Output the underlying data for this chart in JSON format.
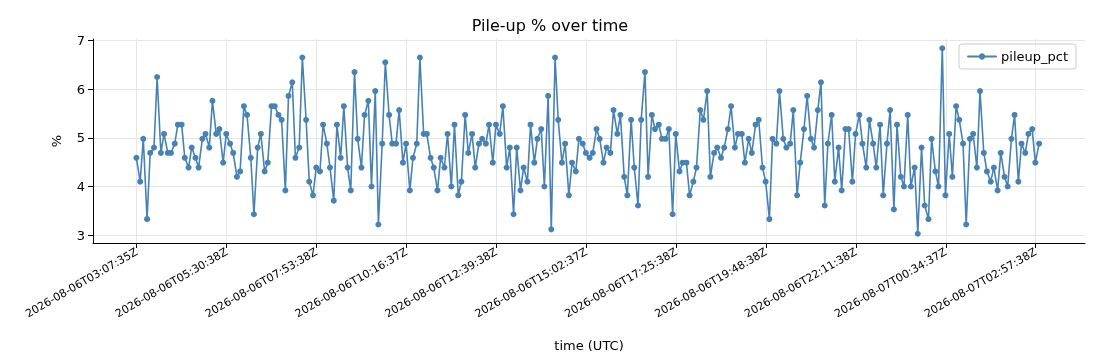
{
  "chart_data": {
    "type": "line",
    "title": "Pile-up % over time",
    "xlabel": "time (UTC)",
    "ylabel": "%",
    "xlim": [
      "2026-08-06T01:58",
      "2026-08-07T04:16"
    ],
    "xticks": [
      "2026-08-06T03:07:35Z",
      "2026-08-06T05:30:38Z",
      "2026-08-06T07:53:38Z",
      "2026-08-06T10:16:37Z",
      "2026-08-06T12:39:38Z",
      "2026-08-06T15:02:37Z",
      "2026-08-06T17:25:38Z",
      "2026-08-06T19:48:38Z",
      "2026-08-06T22:11:38Z",
      "2026-08-07T00:34:37Z",
      "2026-08-07T02:57:38Z"
    ],
    "ylim": [
      2.84,
      7.03
    ],
    "yticks": [
      3,
      4,
      5,
      6,
      7
    ],
    "grid": true,
    "legend": "top right",
    "marker": "circle",
    "line_style": "solid",
    "x": [
      "2026-08-06T03:07",
      "2026-08-06T03:13",
      "2026-08-06T03:18",
      "2026-08-06T03:24",
      "2026-08-06T03:29",
      "2026-08-06T03:35",
      "2026-08-06T03:40",
      "2026-08-06T03:46",
      "2026-08-06T03:51",
      "2026-08-06T03:57",
      "2026-08-06T04:02",
      "2026-08-06T04:08",
      "2026-08-06T04:13",
      "2026-08-06T04:19",
      "2026-08-06T04:24",
      "2026-08-06T04:30",
      "2026-08-06T04:35",
      "2026-08-06T04:41",
      "2026-08-06T04:46",
      "2026-08-06T04:52",
      "2026-08-06T04:57",
      "2026-08-06T05:03",
      "2026-08-06T05:08",
      "2026-08-06T05:14",
      "2026-08-06T05:19",
      "2026-08-06T05:25",
      "2026-08-06T05:30",
      "2026-08-06T05:36",
      "2026-08-06T05:41",
      "2026-08-06T05:47",
      "2026-08-06T05:52",
      "2026-08-06T05:58",
      "2026-08-06T06:03",
      "2026-08-06T06:09",
      "2026-08-06T06:14",
      "2026-08-06T06:20",
      "2026-08-06T06:25",
      "2026-08-06T06:31",
      "2026-08-06T06:36",
      "2026-08-06T06:42",
      "2026-08-06T06:47",
      "2026-08-06T06:53",
      "2026-08-06T06:58",
      "2026-08-06T07:04",
      "2026-08-06T07:09",
      "2026-08-06T07:15",
      "2026-08-06T07:20",
      "2026-08-06T07:26",
      "2026-08-06T07:31",
      "2026-08-06T07:37",
      "2026-08-06T07:42",
      "2026-08-06T07:48",
      "2026-08-06T07:53",
      "2026-08-06T07:59",
      "2026-08-06T08:04",
      "2026-08-06T08:10",
      "2026-08-06T08:15",
      "2026-08-06T08:21",
      "2026-08-06T08:26",
      "2026-08-06T08:32",
      "2026-08-06T08:37",
      "2026-08-06T08:43",
      "2026-08-06T08:48",
      "2026-08-06T08:54",
      "2026-08-06T08:59",
      "2026-08-06T09:05",
      "2026-08-06T09:10",
      "2026-08-06T09:16",
      "2026-08-06T09:21",
      "2026-08-06T09:27",
      "2026-08-06T09:32",
      "2026-08-06T09:38",
      "2026-08-06T09:43",
      "2026-08-06T09:49",
      "2026-08-06T09:54",
      "2026-08-06T10:00",
      "2026-08-06T10:05",
      "2026-08-06T10:11",
      "2026-08-06T10:16",
      "2026-08-06T10:22",
      "2026-08-06T10:27",
      "2026-08-06T10:33",
      "2026-08-06T10:38",
      "2026-08-06T10:44",
      "2026-08-06T10:49",
      "2026-08-06T10:55",
      "2026-08-06T11:00",
      "2026-08-06T11:06",
      "2026-08-06T11:11",
      "2026-08-06T11:17",
      "2026-08-06T11:22",
      "2026-08-06T11:28",
      "2026-08-06T11:33",
      "2026-08-06T11:39",
      "2026-08-06T11:44",
      "2026-08-06T11:50",
      "2026-08-06T11:55",
      "2026-08-06T12:01",
      "2026-08-06T12:06",
      "2026-08-06T12:12",
      "2026-08-06T12:17",
      "2026-08-06T12:23",
      "2026-08-06T12:28",
      "2026-08-06T12:34",
      "2026-08-06T12:39",
      "2026-08-06T12:45",
      "2026-08-06T12:50",
      "2026-08-06T12:56",
      "2026-08-06T13:01",
      "2026-08-06T13:07",
      "2026-08-06T13:12",
      "2026-08-06T13:18",
      "2026-08-06T13:23",
      "2026-08-06T13:29",
      "2026-08-06T13:34",
      "2026-08-06T13:40",
      "2026-08-06T13:45",
      "2026-08-06T13:51",
      "2026-08-06T13:56",
      "2026-08-06T14:02",
      "2026-08-06T14:07",
      "2026-08-06T14:13",
      "2026-08-06T14:18",
      "2026-08-06T14:24",
      "2026-08-06T14:29",
      "2026-08-06T14:35",
      "2026-08-06T14:40",
      "2026-08-06T14:46",
      "2026-08-06T14:51",
      "2026-08-06T14:57",
      "2026-08-06T15:02",
      "2026-08-06T15:08",
      "2026-08-06T15:13",
      "2026-08-06T15:19",
      "2026-08-06T15:24",
      "2026-08-06T15:30",
      "2026-08-06T15:35",
      "2026-08-06T15:41",
      "2026-08-06T15:46",
      "2026-08-06T15:52",
      "2026-08-06T15:57",
      "2026-08-06T16:03",
      "2026-08-06T16:08",
      "2026-08-06T16:14",
      "2026-08-06T16:19",
      "2026-08-06T16:25",
      "2026-08-06T16:30",
      "2026-08-06T16:36",
      "2026-08-06T16:41",
      "2026-08-06T16:47",
      "2026-08-06T16:52",
      "2026-08-06T16:58",
      "2026-08-06T17:03",
      "2026-08-06T17:09",
      "2026-08-06T17:14",
      "2026-08-06T17:20",
      "2026-08-06T17:25",
      "2026-08-06T17:31",
      "2026-08-06T17:36",
      "2026-08-06T17:42",
      "2026-08-06T17:47",
      "2026-08-06T17:53",
      "2026-08-06T17:58",
      "2026-08-06T18:04",
      "2026-08-06T18:09",
      "2026-08-06T18:15",
      "2026-08-06T18:20",
      "2026-08-06T18:26",
      "2026-08-06T18:31",
      "2026-08-06T18:37",
      "2026-08-06T18:42",
      "2026-08-06T18:48",
      "2026-08-06T18:53",
      "2026-08-06T18:59",
      "2026-08-06T19:04",
      "2026-08-06T19:10",
      "2026-08-06T19:15",
      "2026-08-06T19:21",
      "2026-08-06T19:26",
      "2026-08-06T19:32",
      "2026-08-06T19:37",
      "2026-08-06T19:43",
      "2026-08-06T19:48",
      "2026-08-06T19:54",
      "2026-08-06T19:59",
      "2026-08-06T20:05",
      "2026-08-06T20:10",
      "2026-08-06T20:16",
      "2026-08-06T20:21",
      "2026-08-06T20:27",
      "2026-08-06T20:32",
      "2026-08-06T20:38",
      "2026-08-06T20:43",
      "2026-08-06T20:49",
      "2026-08-06T20:54",
      "2026-08-06T21:00",
      "2026-08-06T21:05",
      "2026-08-06T21:11",
      "2026-08-06T21:16",
      "2026-08-06T21:22",
      "2026-08-06T21:27",
      "2026-08-06T21:33",
      "2026-08-06T21:38",
      "2026-08-06T21:44",
      "2026-08-06T21:49",
      "2026-08-06T21:55",
      "2026-08-06T22:00",
      "2026-08-06T22:06",
      "2026-08-06T22:11",
      "2026-08-06T22:17",
      "2026-08-06T22:22",
      "2026-08-06T22:28",
      "2026-08-06T22:33",
      "2026-08-06T22:39",
      "2026-08-06T22:44",
      "2026-08-06T22:50",
      "2026-08-06T22:55",
      "2026-08-06T23:01",
      "2026-08-06T23:06",
      "2026-08-06T23:12",
      "2026-08-06T23:17",
      "2026-08-06T23:23",
      "2026-08-06T23:28",
      "2026-08-06T23:34",
      "2026-08-06T23:39",
      "2026-08-06T23:45",
      "2026-08-06T23:50",
      "2026-08-06T23:56",
      "2026-08-07T00:01",
      "2026-08-07T00:07",
      "2026-08-07T00:12",
      "2026-08-07T00:18",
      "2026-08-07T00:23",
      "2026-08-07T00:29",
      "2026-08-07T00:34",
      "2026-08-07T00:40",
      "2026-08-07T00:45",
      "2026-08-07T00:51",
      "2026-08-07T00:56",
      "2026-08-07T01:02",
      "2026-08-07T01:07",
      "2026-08-07T01:13",
      "2026-08-07T01:18",
      "2026-08-07T01:24",
      "2026-08-07T01:29",
      "2026-08-07T01:35",
      "2026-08-07T01:40",
      "2026-08-07T01:46",
      "2026-08-07T01:51",
      "2026-08-07T01:57",
      "2026-08-07T02:02",
      "2026-08-07T02:08",
      "2026-08-07T02:13",
      "2026-08-07T02:19",
      "2026-08-07T02:24",
      "2026-08-07T02:30",
      "2026-08-07T02:35",
      "2026-08-07T02:41",
      "2026-08-07T02:46",
      "2026-08-07T02:52",
      "2026-08-07T02:57",
      "2026-08-07T03:03"
    ],
    "series": [
      {
        "name": "pileup_pct",
        "color": "#4682b4",
        "values": [
          4.59,
          4.1,
          4.98,
          3.33,
          4.69,
          4.8,
          6.25,
          4.69,
          5.08,
          4.69,
          4.69,
          4.88,
          5.27,
          5.27,
          4.59,
          4.39,
          4.8,
          4.59,
          4.39,
          4.98,
          5.08,
          4.8,
          5.76,
          5.08,
          5.18,
          4.49,
          5.08,
          4.88,
          4.69,
          4.2,
          4.31,
          5.65,
          5.47,
          4.59,
          3.43,
          4.8,
          5.08,
          4.31,
          4.49,
          5.65,
          5.65,
          5.47,
          5.37,
          3.92,
          5.86,
          6.14,
          4.59,
          4.8,
          6.65,
          5.37,
          4.1,
          3.82,
          4.39,
          4.31,
          5.27,
          4.88,
          4.39,
          3.71,
          5.27,
          4.59,
          5.65,
          4.39,
          3.92,
          6.35,
          4.98,
          4.39,
          5.47,
          5.76,
          4.0,
          5.96,
          3.22,
          4.88,
          6.55,
          5.47,
          4.88,
          4.88,
          5.57,
          4.49,
          4.88,
          3.92,
          4.59,
          4.88,
          6.65,
          5.08,
          5.08,
          4.59,
          4.39,
          3.92,
          4.59,
          4.39,
          5.08,
          4.0,
          5.27,
          3.82,
          4.1,
          5.47,
          4.69,
          5.08,
          4.39,
          4.88,
          4.98,
          4.88,
          5.27,
          4.49,
          5.27,
          5.08,
          5.65,
          4.39,
          4.8,
          3.43,
          4.8,
          3.92,
          4.39,
          4.1,
          5.27,
          4.49,
          4.98,
          5.18,
          4.0,
          5.86,
          3.12,
          6.65,
          5.37,
          4.49,
          4.88,
          3.82,
          4.49,
          4.31,
          4.98,
          4.88,
          4.69,
          4.59,
          4.69,
          5.18,
          4.98,
          4.49,
          4.8,
          4.69,
          5.57,
          5.08,
          5.47,
          4.2,
          3.82,
          5.37,
          4.39,
          3.61,
          5.37,
          6.35,
          4.2,
          5.47,
          5.18,
          5.27,
          4.98,
          4.98,
          5.18,
          3.43,
          5.08,
          4.31,
          4.49,
          4.49,
          3.82,
          4.1,
          4.39,
          5.57,
          5.37,
          5.96,
          4.2,
          4.69,
          4.8,
          4.59,
          4.8,
          5.18,
          5.65,
          4.8,
          5.08,
          5.08,
          4.49,
          4.98,
          4.69,
          5.27,
          5.37,
          4.39,
          4.1,
          3.33,
          4.98,
          4.88,
          5.96,
          4.98,
          4.8,
          4.88,
          5.57,
          3.82,
          4.49,
          5.18,
          5.86,
          4.98,
          4.8,
          5.57,
          6.14,
          3.61,
          4.88,
          5.47,
          4.1,
          4.8,
          3.92,
          5.18,
          5.18,
          4.1,
          5.08,
          5.47,
          4.88,
          4.39,
          5.37,
          4.88,
          4.39,
          5.27,
          3.82,
          4.88,
          5.57,
          3.53,
          5.27,
          4.2,
          4.0,
          5.47,
          4.0,
          4.39,
          3.03,
          4.8,
          3.61,
          3.33,
          4.98,
          4.31,
          4.0,
          6.84,
          3.82,
          5.08,
          4.2,
          5.65,
          5.37,
          4.88,
          3.22,
          4.98,
          5.08,
          4.39,
          5.96,
          4.69,
          4.31,
          4.1,
          4.39,
          3.92,
          4.69,
          4.2,
          4.0,
          4.98,
          5.47,
          4.1,
          4.88,
          4.69,
          5.08,
          5.18,
          4.49,
          4.88
        ]
      }
    ]
  }
}
